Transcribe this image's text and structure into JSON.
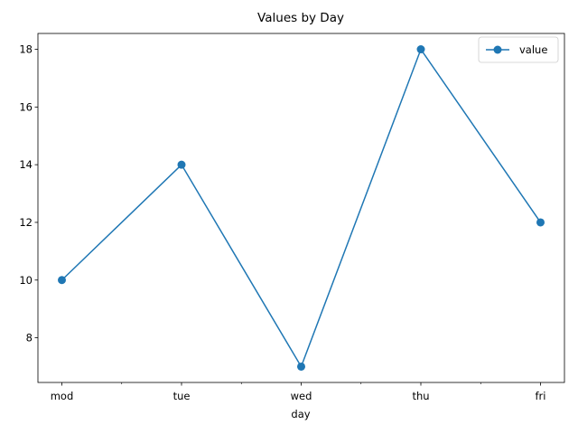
{
  "chart_data": {
    "type": "line",
    "title": "Values by Day",
    "xlabel": "day",
    "ylabel": "",
    "categories": [
      "mod",
      "tue",
      "wed",
      "thu",
      "fri"
    ],
    "series": [
      {
        "name": "value",
        "values": [
          10,
          14,
          7,
          18,
          12
        ],
        "color": "#1f77b4"
      }
    ],
    "ylim": [
      6.45,
      18.55
    ],
    "yticks": [
      8,
      10,
      12,
      14,
      16,
      18
    ],
    "grid": false,
    "legend": "top-right"
  }
}
